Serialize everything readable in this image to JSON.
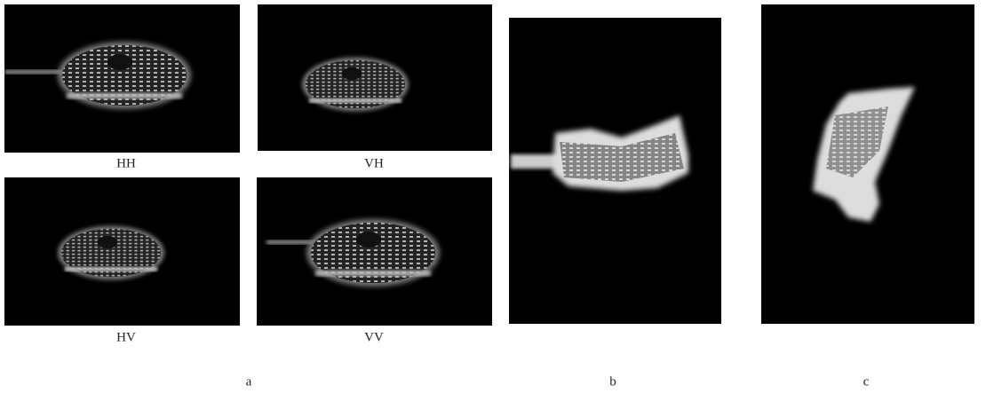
{
  "images": [
    {
      "label": "HH"
    },
    {
      "label": "VH"
    },
    {
      "label": "HV"
    },
    {
      "label": "VV"
    }
  ],
  "subfigures": [
    "a",
    "b",
    "c"
  ]
}
